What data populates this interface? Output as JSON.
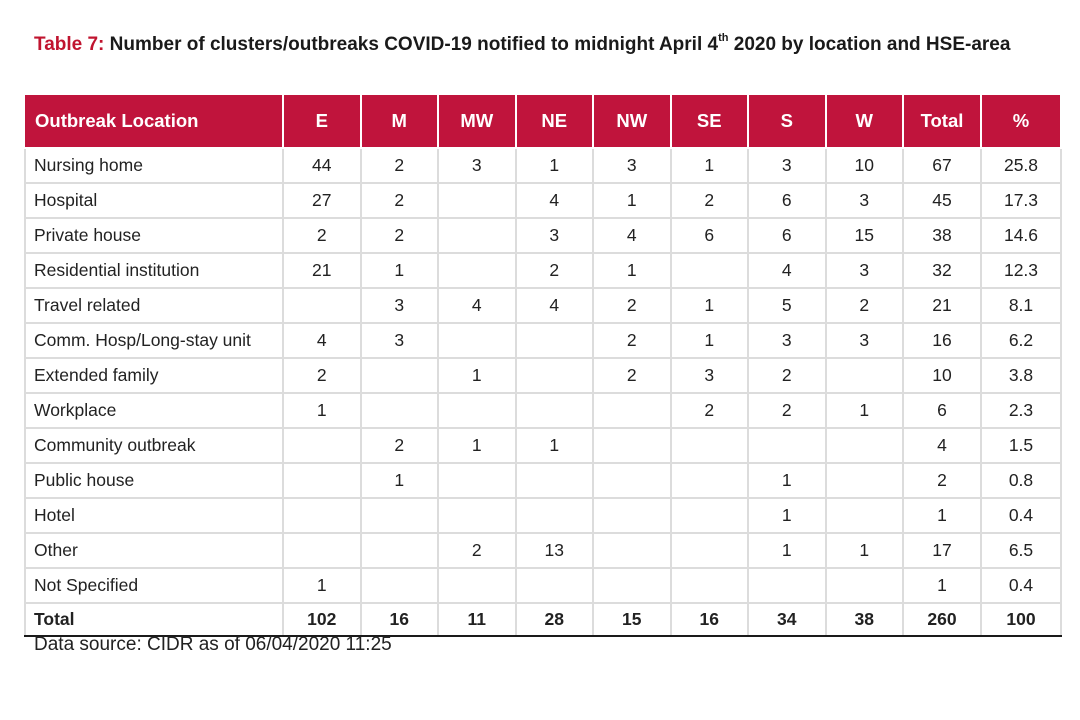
{
  "caption": {
    "label": "Table 7:",
    "text_before_sup": "Number of clusters/outbreaks COVID-19 notified to midnight April 4",
    "sup": "th",
    "text_after_sup": " 2020 by location and HSE-area"
  },
  "table": {
    "headers": [
      "Outbreak Location",
      "E",
      "M",
      "MW",
      "NE",
      "NW",
      "SE",
      "S",
      "W",
      "Total",
      "%"
    ],
    "rows": [
      [
        "Nursing home",
        "44",
        "2",
        "3",
        "1",
        "3",
        "1",
        "3",
        "10",
        "67",
        "25.8"
      ],
      [
        "Hospital",
        "27",
        "2",
        "",
        "4",
        "1",
        "2",
        "6",
        "3",
        "45",
        "17.3"
      ],
      [
        "Private house",
        "2",
        "2",
        "",
        "3",
        "4",
        "6",
        "6",
        "15",
        "38",
        "14.6"
      ],
      [
        "Residential institution",
        "21",
        "1",
        "",
        "2",
        "1",
        "",
        "4",
        "3",
        "32",
        "12.3"
      ],
      [
        "Travel related",
        "",
        "3",
        "4",
        "4",
        "2",
        "1",
        "5",
        "2",
        "21",
        "8.1"
      ],
      [
        "Comm. Hosp/Long-stay unit",
        "4",
        "3",
        "",
        "",
        "2",
        "1",
        "3",
        "3",
        "16",
        "6.2"
      ],
      [
        "Extended family",
        "2",
        "",
        "1",
        "",
        "2",
        "3",
        "2",
        "",
        "10",
        "3.8"
      ],
      [
        "Workplace",
        "1",
        "",
        "",
        "",
        "",
        "2",
        "2",
        "1",
        "6",
        "2.3"
      ],
      [
        "Community outbreak",
        "",
        "2",
        "1",
        "1",
        "",
        "",
        "",
        "",
        "4",
        "1.5"
      ],
      [
        "Public house",
        "",
        "1",
        "",
        "",
        "",
        "",
        "1",
        "",
        "2",
        "0.8"
      ],
      [
        "Hotel",
        "",
        "",
        "",
        "",
        "",
        "",
        "1",
        "",
        "1",
        "0.4"
      ],
      [
        "Other",
        "",
        "",
        "2",
        "13",
        "",
        "",
        "1",
        "1",
        "17",
        "6.5"
      ],
      [
        "Not Specified",
        "1",
        "",
        "",
        "",
        "",
        "",
        "",
        "",
        "1",
        "0.4"
      ]
    ],
    "total": [
      "Total",
      "102",
      "16",
      "11",
      "28",
      "15",
      "16",
      "34",
      "38",
      "260",
      "100"
    ]
  },
  "source": "Data source: CIDR as of 06/04/2020 11:25",
  "colors": {
    "header_bg": "#c0143c",
    "caption_label": "#c0142f"
  }
}
